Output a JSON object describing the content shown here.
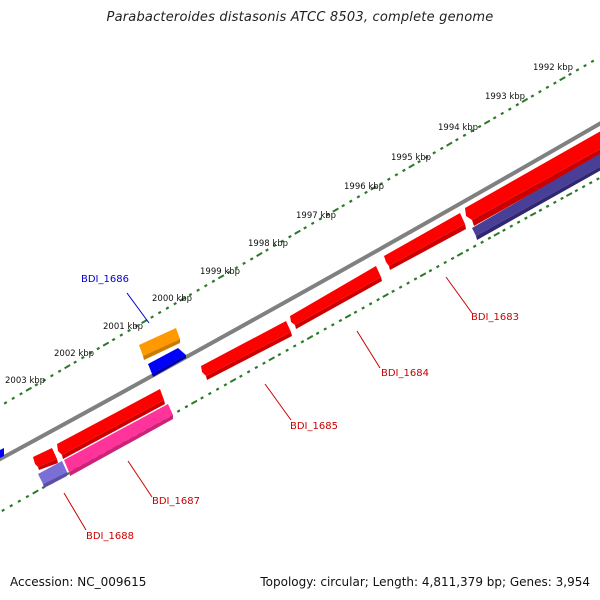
{
  "title": "Parabacteroides distasonis ATCC 8503, complete genome",
  "accession": "Accession: NC_009615",
  "topology": "Topology: circular; Length: 4,811,379 bp; Genes: 3,954",
  "colors": {
    "backbone": "#808080",
    "scale_ticks": "#2a7a2a",
    "label_red": "#cc0000",
    "label_blue": "#0000cc"
  },
  "scale_labels": [
    "1992 kbp",
    "1993 kbp",
    "1994 kbp",
    "1995 kbp",
    "1996 kbp",
    "1997 kbp",
    "1998 kbp",
    "1999 kbp",
    "2000 kbp",
    "2001 kbp",
    "2002 kbp",
    "2003 kbp"
  ],
  "genes": [
    {
      "label": "BDI_1683",
      "color": "red"
    },
    {
      "label": "BDI_1684",
      "color": "red"
    },
    {
      "label": "BDI_1685",
      "color": "red"
    },
    {
      "label": "BDI_1686",
      "color": "blue"
    },
    {
      "label": "BDI_1687",
      "color": "red"
    },
    {
      "label": "BDI_1688",
      "color": "red"
    }
  ]
}
